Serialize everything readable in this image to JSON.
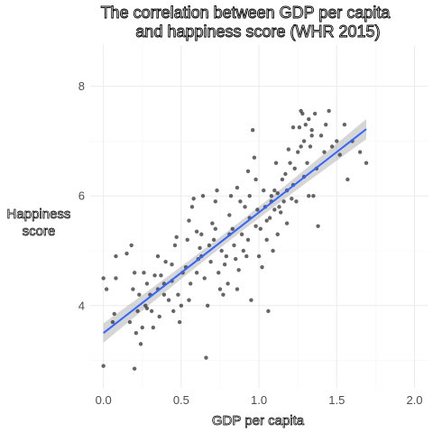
{
  "chart_data": {
    "type": "scatter",
    "title_lines": [
      "The correlation between GDP per capita",
      "and happiness score (WHR 2015)"
    ],
    "xlabel": "GDP per capita",
    "ylabel_lines": [
      "Happiness",
      "score"
    ],
    "xlim": [
      -0.085,
      2.09
    ],
    "ylim": [
      2.5,
      8.75
    ],
    "x_ticks": [
      0.0,
      0.5,
      1.0,
      1.5,
      2.0
    ],
    "x_tick_labels": [
      "0.0",
      "0.5",
      "1.0",
      "1.5",
      "2.0"
    ],
    "y_ticks": [
      4,
      6,
      8
    ],
    "y_tick_labels": [
      "4",
      "6",
      "8"
    ],
    "grid": true,
    "trend": {
      "intercept": 3.5,
      "slope": 2.2,
      "x_range": [
        0.0,
        1.69
      ],
      "color": "#3366FF",
      "band_color": "#999999"
    },
    "point_color": "#333333",
    "points": [
      [
        0.0,
        4.5
      ],
      [
        0.02,
        4.3
      ],
      [
        0.0,
        2.9
      ],
      [
        0.06,
        3.7
      ],
      [
        0.07,
        3.85
      ],
      [
        0.08,
        4.9
      ],
      [
        0.08,
        4.5
      ],
      [
        0.15,
        4.95
      ],
      [
        0.17,
        3.7
      ],
      [
        0.18,
        5.1
      ],
      [
        0.19,
        4.3
      ],
      [
        0.2,
        4.6
      ],
      [
        0.2,
        2.85
      ],
      [
        0.21,
        3.5
      ],
      [
        0.22,
        3.9
      ],
      [
        0.23,
        4.2
      ],
      [
        0.24,
        3.3
      ],
      [
        0.25,
        3.6
      ],
      [
        0.26,
        4.6
      ],
      [
        0.27,
        4.0
      ],
      [
        0.28,
        4.4
      ],
      [
        0.3,
        4.2
      ],
      [
        0.31,
        3.9
      ],
      [
        0.32,
        3.6
      ],
      [
        0.33,
        4.55
      ],
      [
        0.35,
        4.9
      ],
      [
        0.35,
        4.3
      ],
      [
        0.36,
        3.8
      ],
      [
        0.37,
        4.55
      ],
      [
        0.39,
        4.4
      ],
      [
        0.4,
        4.8
      ],
      [
        0.42,
        4.1
      ],
      [
        0.44,
        4.45
      ],
      [
        0.45,
        3.9
      ],
      [
        0.46,
        5.1
      ],
      [
        0.47,
        5.25
      ],
      [
        0.48,
        4.2
      ],
      [
        0.49,
        3.7
      ],
      [
        0.5,
        4.0
      ],
      [
        0.51,
        4.6
      ],
      [
        0.53,
        4.7
      ],
      [
        0.54,
        5.2
      ],
      [
        0.55,
        4.1
      ],
      [
        0.56,
        4.4
      ],
      [
        0.57,
        5.8
      ],
      [
        0.58,
        5.95
      ],
      [
        0.6,
        5.35
      ],
      [
        0.6,
        4.6
      ],
      [
        0.61,
        4.85
      ],
      [
        0.62,
        5.05
      ],
      [
        0.63,
        5.3
      ],
      [
        0.64,
        6.0
      ],
      [
        0.65,
        4.5
      ],
      [
        0.66,
        3.05
      ],
      [
        0.67,
        4.0
      ],
      [
        0.68,
        5.1
      ],
      [
        0.69,
        4.8
      ],
      [
        0.7,
        5.5
      ],
      [
        0.71,
        5.2
      ],
      [
        0.72,
        5.9
      ],
      [
        0.73,
        6.1
      ],
      [
        0.74,
        4.6
      ],
      [
        0.75,
        4.3
      ],
      [
        0.76,
        5.0
      ],
      [
        0.77,
        4.2
      ],
      [
        0.78,
        4.75
      ],
      [
        0.79,
        4.9
      ],
      [
        0.8,
        4.4
      ],
      [
        0.81,
        5.65
      ],
      [
        0.82,
        6.0
      ],
      [
        0.83,
        5.4
      ],
      [
        0.84,
        5.1
      ],
      [
        0.85,
        4.85
      ],
      [
        0.86,
        4.3
      ],
      [
        0.87,
        4.65
      ],
      [
        0.88,
        5.9
      ],
      [
        0.89,
        5.3
      ],
      [
        0.9,
        5.0
      ],
      [
        0.91,
        5.8
      ],
      [
        0.92,
        4.9
      ],
      [
        0.93,
        5.2
      ],
      [
        0.94,
        5.6
      ],
      [
        0.95,
        4.1
      ],
      [
        0.96,
        7.2
      ],
      [
        0.97,
        6.7
      ],
      [
        0.98,
        5.45
      ],
      [
        0.99,
        5.75
      ],
      [
        1.0,
        4.9
      ],
      [
        1.01,
        5.4
      ],
      [
        1.02,
        4.7
      ],
      [
        1.03,
        6.1
      ],
      [
        1.04,
        5.8
      ],
      [
        1.05,
        5.2
      ],
      [
        1.06,
        3.9
      ],
      [
        1.07,
        5.6
      ],
      [
        1.08,
        6.0
      ],
      [
        1.09,
        5.0
      ],
      [
        1.1,
        5.75
      ],
      [
        1.11,
        6.6
      ],
      [
        1.12,
        5.3
      ],
      [
        1.13,
        5.8
      ],
      [
        1.14,
        5.7
      ],
      [
        1.15,
        6.3
      ],
      [
        1.16,
        5.9
      ],
      [
        1.17,
        6.4
      ],
      [
        1.18,
        5.5
      ],
      [
        1.19,
        6.85
      ],
      [
        1.2,
        6.6
      ],
      [
        1.21,
        5.95
      ],
      [
        1.22,
        6.2
      ],
      [
        1.23,
        6.5
      ],
      [
        1.24,
        5.9
      ],
      [
        1.25,
        6.8
      ],
      [
        1.26,
        7.25
      ],
      [
        1.27,
        6.9
      ],
      [
        1.28,
        7.5
      ],
      [
        1.29,
        7.0
      ],
      [
        1.3,
        7.3
      ],
      [
        1.31,
        6.6
      ],
      [
        1.32,
        7.4
      ],
      [
        1.33,
        6.9
      ],
      [
        1.34,
        7.2
      ],
      [
        1.35,
        6.0
      ],
      [
        1.36,
        7.5
      ],
      [
        1.37,
        6.5
      ],
      [
        1.38,
        5.45
      ],
      [
        1.4,
        7.1
      ],
      [
        1.42,
        6.8
      ],
      [
        1.43,
        7.3
      ],
      [
        1.45,
        7.55
      ],
      [
        1.47,
        6.9
      ],
      [
        1.5,
        7.0
      ],
      [
        1.52,
        6.75
      ],
      [
        1.55,
        7.3
      ],
      [
        1.57,
        6.3
      ],
      [
        1.6,
        7.0
      ],
      [
        1.65,
        6.8
      ],
      [
        1.69,
        6.6
      ],
      [
        1.05,
        5.55
      ],
      [
        1.1,
        6.1
      ],
      [
        0.98,
        6.3
      ],
      [
        0.93,
        6.45
      ],
      [
        0.86,
        6.15
      ],
      [
        1.18,
        6.1
      ],
      [
        1.22,
        7.25
      ],
      [
        1.29,
        6.35
      ],
      [
        0.72,
        5.4
      ],
      [
        0.63,
        4.9
      ],
      [
        0.55,
        5.55
      ],
      [
        0.44,
        4.75
      ],
      [
        0.39,
        4.2
      ],
      [
        0.28,
        3.95
      ],
      [
        1.32,
        6.0
      ],
      [
        1.12,
        6.05
      ],
      [
        1.27,
        7.55
      ],
      [
        1.34,
        7.1
      ],
      [
        0.94,
        6.0
      ],
      [
        0.81,
        5.3
      ],
      [
        1.08,
        5.9
      ]
    ]
  }
}
